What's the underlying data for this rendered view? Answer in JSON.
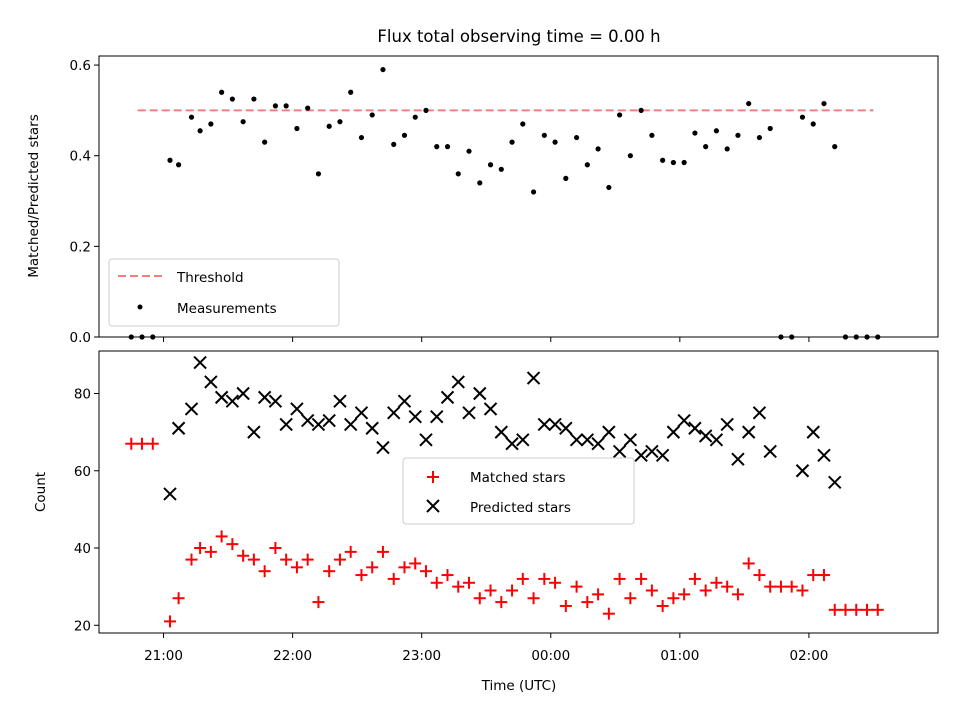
{
  "chart_data": [
    {
      "type": "scatter",
      "title": "Flux total observing time = 0.00 h",
      "xlabel": "",
      "ylabel": "Matched/Predicted stars",
      "ylim": [
        0,
        0.62
      ],
      "yticks": [
        "0.0",
        "0.2",
        "0.4",
        "0.6"
      ],
      "xlim": [
        "20:30",
        "03:00"
      ],
      "grid": false,
      "legend_position": "lower-left",
      "threshold": {
        "name": "Threshold",
        "value": 0.5,
        "x_range": [
          "20:48",
          "02:30"
        ],
        "color": "#f08080"
      },
      "series": [
        {
          "name": "Measurements",
          "color": "#000000",
          "points": [
            {
              "x": "20:45",
              "y": 0.0
            },
            {
              "x": "20:50",
              "y": 0.0
            },
            {
              "x": "20:55",
              "y": 0.0
            },
            {
              "x": "21:03",
              "y": 0.39
            },
            {
              "x": "21:07",
              "y": 0.38
            },
            {
              "x": "21:13",
              "y": 0.485
            },
            {
              "x": "21:17",
              "y": 0.455
            },
            {
              "x": "21:22",
              "y": 0.47
            },
            {
              "x": "21:27",
              "y": 0.54
            },
            {
              "x": "21:32",
              "y": 0.525
            },
            {
              "x": "21:37",
              "y": 0.475
            },
            {
              "x": "21:42",
              "y": 0.525
            },
            {
              "x": "21:47",
              "y": 0.43
            },
            {
              "x": "21:52",
              "y": 0.51
            },
            {
              "x": "21:57",
              "y": 0.51
            },
            {
              "x": "22:02",
              "y": 0.46
            },
            {
              "x": "22:07",
              "y": 0.505
            },
            {
              "x": "22:12",
              "y": 0.36
            },
            {
              "x": "22:17",
              "y": 0.465
            },
            {
              "x": "22:22",
              "y": 0.475
            },
            {
              "x": "22:27",
              "y": 0.54
            },
            {
              "x": "22:32",
              "y": 0.44
            },
            {
              "x": "22:37",
              "y": 0.49
            },
            {
              "x": "22:42",
              "y": 0.59
            },
            {
              "x": "22:47",
              "y": 0.425
            },
            {
              "x": "22:52",
              "y": 0.445
            },
            {
              "x": "22:57",
              "y": 0.485
            },
            {
              "x": "23:02",
              "y": 0.5
            },
            {
              "x": "23:07",
              "y": 0.42
            },
            {
              "x": "23:12",
              "y": 0.42
            },
            {
              "x": "23:17",
              "y": 0.36
            },
            {
              "x": "23:22",
              "y": 0.41
            },
            {
              "x": "23:27",
              "y": 0.34
            },
            {
              "x": "23:32",
              "y": 0.38
            },
            {
              "x": "23:37",
              "y": 0.37
            },
            {
              "x": "23:42",
              "y": 0.43
            },
            {
              "x": "23:47",
              "y": 0.47
            },
            {
              "x": "23:52",
              "y": 0.32
            },
            {
              "x": "23:57",
              "y": 0.445
            },
            {
              "x": "00:02",
              "y": 0.43
            },
            {
              "x": "00:07",
              "y": 0.35
            },
            {
              "x": "00:12",
              "y": 0.44
            },
            {
              "x": "00:17",
              "y": 0.38
            },
            {
              "x": "00:22",
              "y": 0.415
            },
            {
              "x": "00:27",
              "y": 0.33
            },
            {
              "x": "00:32",
              "y": 0.49
            },
            {
              "x": "00:37",
              "y": 0.4
            },
            {
              "x": "00:42",
              "y": 0.5
            },
            {
              "x": "00:47",
              "y": 0.445
            },
            {
              "x": "00:52",
              "y": 0.39
            },
            {
              "x": "00:57",
              "y": 0.385
            },
            {
              "x": "01:02",
              "y": 0.385
            },
            {
              "x": "01:07",
              "y": 0.45
            },
            {
              "x": "01:12",
              "y": 0.42
            },
            {
              "x": "01:17",
              "y": 0.455
            },
            {
              "x": "01:22",
              "y": 0.415
            },
            {
              "x": "01:27",
              "y": 0.445
            },
            {
              "x": "01:32",
              "y": 0.515
            },
            {
              "x": "01:37",
              "y": 0.44
            },
            {
              "x": "01:42",
              "y": 0.46
            },
            {
              "x": "01:47",
              "y": 0.0
            },
            {
              "x": "01:52",
              "y": 0.0
            },
            {
              "x": "01:57",
              "y": 0.485
            },
            {
              "x": "02:02",
              "y": 0.47
            },
            {
              "x": "02:07",
              "y": 0.515
            },
            {
              "x": "02:12",
              "y": 0.42
            },
            {
              "x": "02:17",
              "y": 0.0
            },
            {
              "x": "02:22",
              "y": 0.0
            },
            {
              "x": "02:27",
              "y": 0.0
            },
            {
              "x": "02:32",
              "y": 0.0
            }
          ]
        }
      ]
    },
    {
      "type": "scatter",
      "title": "",
      "xlabel": "Time (UTC)",
      "ylabel": "Count",
      "ylim": [
        18,
        91
      ],
      "yticks": [
        "20",
        "40",
        "60",
        "80"
      ],
      "xlim": [
        "20:30",
        "03:00"
      ],
      "xticks": [
        "21:00",
        "22:00",
        "23:00",
        "00:00",
        "01:00",
        "02:00"
      ],
      "grid": false,
      "legend_position": "center",
      "series": [
        {
          "name": "Matched stars",
          "color": "#ff0000",
          "marker": "plus",
          "points": [
            {
              "x": "20:45",
              "y": 67
            },
            {
              "x": "20:50",
              "y": 67
            },
            {
              "x": "20:55",
              "y": 67
            },
            {
              "x": "21:03",
              "y": 21
            },
            {
              "x": "21:07",
              "y": 27
            },
            {
              "x": "21:13",
              "y": 37
            },
            {
              "x": "21:17",
              "y": 40
            },
            {
              "x": "21:22",
              "y": 39
            },
            {
              "x": "21:27",
              "y": 43
            },
            {
              "x": "21:32",
              "y": 41
            },
            {
              "x": "21:37",
              "y": 38
            },
            {
              "x": "21:42",
              "y": 37
            },
            {
              "x": "21:47",
              "y": 34
            },
            {
              "x": "21:52",
              "y": 40
            },
            {
              "x": "21:57",
              "y": 37
            },
            {
              "x": "22:02",
              "y": 35
            },
            {
              "x": "22:07",
              "y": 37
            },
            {
              "x": "22:12",
              "y": 26
            },
            {
              "x": "22:17",
              "y": 34
            },
            {
              "x": "22:22",
              "y": 37
            },
            {
              "x": "22:27",
              "y": 39
            },
            {
              "x": "22:32",
              "y": 33
            },
            {
              "x": "22:37",
              "y": 35
            },
            {
              "x": "22:42",
              "y": 39
            },
            {
              "x": "22:47",
              "y": 32
            },
            {
              "x": "22:52",
              "y": 35
            },
            {
              "x": "22:57",
              "y": 36
            },
            {
              "x": "23:02",
              "y": 34
            },
            {
              "x": "23:07",
              "y": 31
            },
            {
              "x": "23:12",
              "y": 33
            },
            {
              "x": "23:17",
              "y": 30
            },
            {
              "x": "23:22",
              "y": 31
            },
            {
              "x": "23:27",
              "y": 27
            },
            {
              "x": "23:32",
              "y": 29
            },
            {
              "x": "23:37",
              "y": 26
            },
            {
              "x": "23:42",
              "y": 29
            },
            {
              "x": "23:47",
              "y": 32
            },
            {
              "x": "23:52",
              "y": 27
            },
            {
              "x": "23:57",
              "y": 32
            },
            {
              "x": "00:02",
              "y": 31
            },
            {
              "x": "00:07",
              "y": 25
            },
            {
              "x": "00:12",
              "y": 30
            },
            {
              "x": "00:17",
              "y": 26
            },
            {
              "x": "00:22",
              "y": 28
            },
            {
              "x": "00:27",
              "y": 23
            },
            {
              "x": "00:32",
              "y": 32
            },
            {
              "x": "00:37",
              "y": 27
            },
            {
              "x": "00:42",
              "y": 32
            },
            {
              "x": "00:47",
              "y": 29
            },
            {
              "x": "00:52",
              "y": 25
            },
            {
              "x": "00:57",
              "y": 27
            },
            {
              "x": "01:02",
              "y": 28
            },
            {
              "x": "01:07",
              "y": 32
            },
            {
              "x": "01:12",
              "y": 29
            },
            {
              "x": "01:17",
              "y": 31
            },
            {
              "x": "01:22",
              "y": 30
            },
            {
              "x": "01:27",
              "y": 28
            },
            {
              "x": "01:32",
              "y": 36
            },
            {
              "x": "01:37",
              "y": 33
            },
            {
              "x": "01:42",
              "y": 30
            },
            {
              "x": "01:47",
              "y": 30
            },
            {
              "x": "01:52",
              "y": 30
            },
            {
              "x": "01:57",
              "y": 29
            },
            {
              "x": "02:02",
              "y": 33
            },
            {
              "x": "02:07",
              "y": 33
            },
            {
              "x": "02:12",
              "y": 24
            },
            {
              "x": "02:17",
              "y": 24
            },
            {
              "x": "02:22",
              "y": 24
            },
            {
              "x": "02:27",
              "y": 24
            },
            {
              "x": "02:32",
              "y": 24
            }
          ]
        },
        {
          "name": "Predicted stars",
          "color": "#000000",
          "marker": "x",
          "points": [
            {
              "x": "21:03",
              "y": 54
            },
            {
              "x": "21:07",
              "y": 71
            },
            {
              "x": "21:13",
              "y": 76
            },
            {
              "x": "21:17",
              "y": 88
            },
            {
              "x": "21:22",
              "y": 83
            },
            {
              "x": "21:27",
              "y": 79
            },
            {
              "x": "21:32",
              "y": 78
            },
            {
              "x": "21:37",
              "y": 80
            },
            {
              "x": "21:42",
              "y": 70
            },
            {
              "x": "21:47",
              "y": 79
            },
            {
              "x": "21:52",
              "y": 78
            },
            {
              "x": "21:57",
              "y": 72
            },
            {
              "x": "22:02",
              "y": 76
            },
            {
              "x": "22:07",
              "y": 73
            },
            {
              "x": "22:12",
              "y": 72
            },
            {
              "x": "22:17",
              "y": 73
            },
            {
              "x": "22:22",
              "y": 78
            },
            {
              "x": "22:27",
              "y": 72
            },
            {
              "x": "22:32",
              "y": 75
            },
            {
              "x": "22:37",
              "y": 71
            },
            {
              "x": "22:42",
              "y": 66
            },
            {
              "x": "22:47",
              "y": 75
            },
            {
              "x": "22:52",
              "y": 78
            },
            {
              "x": "22:57",
              "y": 74
            },
            {
              "x": "23:02",
              "y": 68
            },
            {
              "x": "23:07",
              "y": 74
            },
            {
              "x": "23:12",
              "y": 79
            },
            {
              "x": "23:17",
              "y": 83
            },
            {
              "x": "23:22",
              "y": 75
            },
            {
              "x": "23:27",
              "y": 80
            },
            {
              "x": "23:32",
              "y": 76
            },
            {
              "x": "23:37",
              "y": 70
            },
            {
              "x": "23:42",
              "y": 67
            },
            {
              "x": "23:47",
              "y": 68
            },
            {
              "x": "23:52",
              "y": 84
            },
            {
              "x": "23:57",
              "y": 72
            },
            {
              "x": "00:02",
              "y": 72
            },
            {
              "x": "00:07",
              "y": 71
            },
            {
              "x": "00:12",
              "y": 68
            },
            {
              "x": "00:17",
              "y": 68
            },
            {
              "x": "00:22",
              "y": 67
            },
            {
              "x": "00:27",
              "y": 70
            },
            {
              "x": "00:32",
              "y": 65
            },
            {
              "x": "00:37",
              "y": 68
            },
            {
              "x": "00:42",
              "y": 64
            },
            {
              "x": "00:47",
              "y": 65
            },
            {
              "x": "00:52",
              "y": 64
            },
            {
              "x": "00:57",
              "y": 70
            },
            {
              "x": "01:02",
              "y": 73
            },
            {
              "x": "01:07",
              "y": 71
            },
            {
              "x": "01:12",
              "y": 69
            },
            {
              "x": "01:17",
              "y": 68
            },
            {
              "x": "01:22",
              "y": 72
            },
            {
              "x": "01:27",
              "y": 63
            },
            {
              "x": "01:32",
              "y": 70
            },
            {
              "x": "01:37",
              "y": 75
            },
            {
              "x": "01:42",
              "y": 65
            },
            {
              "x": "01:57",
              "y": 60
            },
            {
              "x": "02:02",
              "y": 70
            },
            {
              "x": "02:07",
              "y": 64
            },
            {
              "x": "02:12",
              "y": 57
            }
          ]
        }
      ]
    }
  ]
}
